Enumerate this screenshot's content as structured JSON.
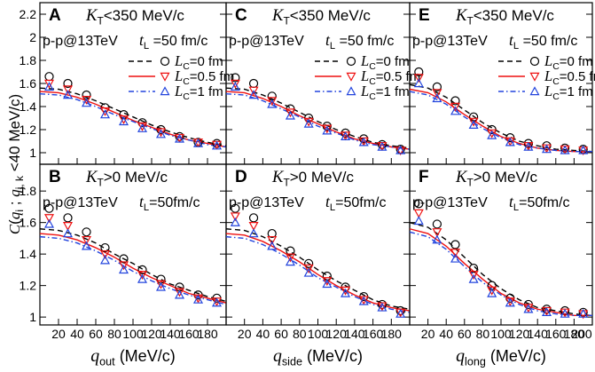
{
  "ylabel": [
    {
      "text": "C",
      "style": "italic"
    },
    {
      "text": "(",
      "style": "normal"
    },
    {
      "text": "q",
      "style": "italic"
    },
    {
      "text": "i",
      "style": "sub"
    },
    {
      "text": " ; ",
      "style": "normal"
    },
    {
      "text": "q",
      "style": "italic"
    },
    {
      "text": "j, k",
      "style": "sub"
    },
    {
      "text": " <40 MeV/c)",
      "style": "normal"
    }
  ],
  "chart_data": [
    {
      "type": "line",
      "label": "A",
      "kt": {
        "symbol": "K",
        "sub": "T",
        "rest": "<350 MeV/c"
      },
      "system": "p-p@13TeV",
      "tl": {
        "symbol": "t",
        "sub": "L",
        "rest": " =50 fm/c"
      },
      "legend_var": {
        "symbol": "L",
        "sub": "C"
      },
      "xlim": [
        0,
        200
      ],
      "ylim": [
        0.9,
        2.3
      ],
      "xticks": [
        20,
        40,
        60,
        80,
        100,
        120,
        140,
        160,
        180
      ],
      "yticks": [
        1,
        1.2,
        1.4,
        1.6,
        1.8,
        2,
        2.2
      ],
      "show_ytick_labels": true,
      "show_xtick_labels": false,
      "curve_x": [
        0,
        20,
        40,
        60,
        80,
        100,
        120,
        140,
        160,
        180,
        200
      ],
      "series": [
        {
          "name": "=0 fm",
          "color": "#000000",
          "dash": "6,4",
          "values": [
            1.56,
            1.55,
            1.51,
            1.45,
            1.38,
            1.31,
            1.24,
            1.18,
            1.13,
            1.09,
            1.06
          ]
        },
        {
          "name": "=0.5 fm",
          "color": "#ee1111",
          "dash": "none",
          "values": [
            1.53,
            1.52,
            1.48,
            1.42,
            1.35,
            1.28,
            1.22,
            1.16,
            1.11,
            1.08,
            1.05
          ]
        },
        {
          "name": "=1 fm",
          "color": "#2244dd",
          "dash": "6,3,1.5,3",
          "values": [
            1.51,
            1.5,
            1.46,
            1.4,
            1.33,
            1.27,
            1.21,
            1.15,
            1.11,
            1.07,
            1.05
          ]
        }
      ],
      "marker_x": [
        10,
        30,
        50,
        70,
        90,
        110,
        130,
        150,
        170,
        190
      ],
      "markers": [
        {
          "marker": "circle",
          "color": "#000000",
          "values": [
            1.66,
            1.6,
            1.5,
            1.39,
            1.33,
            1.26,
            1.2,
            1.14,
            1.09,
            1.08
          ]
        },
        {
          "marker": "triangle-down",
          "color": "#ee1111",
          "values": [
            1.6,
            1.55,
            1.46,
            1.36,
            1.29,
            1.23,
            1.18,
            1.13,
            1.09,
            1.07
          ]
        },
        {
          "marker": "triangle-up",
          "color": "#2244dd",
          "values": [
            1.57,
            1.5,
            1.43,
            1.33,
            1.27,
            1.21,
            1.16,
            1.12,
            1.08,
            1.06
          ]
        }
      ]
    },
    {
      "type": "line",
      "label": "C",
      "kt": {
        "symbol": "K",
        "sub": "T",
        "rest": "<350 MeV/c"
      },
      "system": "p-p@13TeV",
      "tl": {
        "symbol": "t",
        "sub": "L",
        "rest": " =50 fm/c"
      },
      "legend_var": {
        "symbol": "L",
        "sub": "C"
      },
      "xlim": [
        0,
        200
      ],
      "ylim": [
        0.9,
        2.3
      ],
      "xticks": [
        20,
        40,
        60,
        80,
        100,
        120,
        140,
        160,
        180
      ],
      "yticks": [
        1,
        1.2,
        1.4,
        1.6,
        1.8,
        2,
        2.2
      ],
      "show_ytick_labels": false,
      "show_xtick_labels": false,
      "curve_x": [
        0,
        20,
        40,
        60,
        80,
        100,
        120,
        140,
        160,
        180,
        200
      ],
      "series": [
        {
          "name": "=0 fm",
          "color": "#000000",
          "dash": "6,4",
          "values": [
            1.56,
            1.55,
            1.5,
            1.43,
            1.35,
            1.27,
            1.2,
            1.14,
            1.09,
            1.06,
            1.04
          ]
        },
        {
          "name": "=0.5 fm",
          "color": "#ee1111",
          "dash": "none",
          "values": [
            1.53,
            1.52,
            1.47,
            1.4,
            1.32,
            1.25,
            1.18,
            1.12,
            1.08,
            1.05,
            1.03
          ]
        },
        {
          "name": "=1 fm",
          "color": "#2244dd",
          "dash": "6,3,1.5,3",
          "values": [
            1.51,
            1.5,
            1.45,
            1.38,
            1.31,
            1.23,
            1.17,
            1.11,
            1.07,
            1.05,
            1.03
          ]
        }
      ],
      "marker_x": [
        10,
        30,
        50,
        70,
        90,
        110,
        130,
        150,
        170,
        190
      ],
      "markers": [
        {
          "marker": "circle",
          "color": "#000000",
          "values": [
            1.65,
            1.6,
            1.49,
            1.38,
            1.3,
            1.23,
            1.17,
            1.12,
            1.07,
            1.03
          ]
        },
        {
          "marker": "triangle-down",
          "color": "#ee1111",
          "values": [
            1.6,
            1.54,
            1.45,
            1.35,
            1.27,
            1.21,
            1.15,
            1.1,
            1.06,
            1.02
          ]
        },
        {
          "marker": "triangle-up",
          "color": "#2244dd",
          "values": [
            1.57,
            1.5,
            1.42,
            1.32,
            1.25,
            1.19,
            1.14,
            1.09,
            1.05,
            1.02
          ]
        }
      ]
    },
    {
      "type": "line",
      "label": "E",
      "kt": {
        "symbol": "K",
        "sub": "T",
        "rest": "<350 MeV/c"
      },
      "system": "p-p@13TeV",
      "tl": {
        "symbol": "t",
        "sub": "L",
        "rest": " =50 fm/c"
      },
      "legend_var": {
        "symbol": "L",
        "sub": "C"
      },
      "xlim": [
        0,
        200
      ],
      "ylim": [
        0.9,
        2.3
      ],
      "xticks": [
        20,
        40,
        60,
        80,
        100,
        120,
        140,
        160,
        180,
        200
      ],
      "yticks": [
        1,
        1.2,
        1.4,
        1.6,
        1.8,
        2,
        2.2
      ],
      "show_ytick_labels": false,
      "show_xtick_labels": false,
      "curve_x": [
        0,
        20,
        40,
        60,
        80,
        100,
        120,
        140,
        160,
        180,
        200
      ],
      "series": [
        {
          "name": "=0 fm",
          "color": "#000000",
          "dash": "6,4",
          "values": [
            1.59,
            1.56,
            1.48,
            1.37,
            1.26,
            1.17,
            1.1,
            1.06,
            1.03,
            1.02,
            1.01
          ]
        },
        {
          "name": "=0.5 fm",
          "color": "#ee1111",
          "dash": "none",
          "values": [
            1.55,
            1.52,
            1.44,
            1.33,
            1.23,
            1.14,
            1.08,
            1.04,
            1.02,
            1.01,
            1.01
          ]
        },
        {
          "name": "=1 fm",
          "color": "#2244dd",
          "dash": "6,3,1.5,3",
          "values": [
            1.53,
            1.5,
            1.42,
            1.31,
            1.21,
            1.13,
            1.07,
            1.04,
            1.02,
            1.01,
            1.01
          ]
        }
      ],
      "marker_x": [
        10,
        30,
        50,
        70,
        90,
        110,
        130,
        150,
        170,
        190
      ],
      "markers": [
        {
          "marker": "circle",
          "color": "#000000",
          "values": [
            1.7,
            1.57,
            1.45,
            1.31,
            1.2,
            1.13,
            1.08,
            1.06,
            1.04,
            1.03
          ]
        },
        {
          "marker": "triangle-down",
          "color": "#ee1111",
          "values": [
            1.65,
            1.52,
            1.4,
            1.27,
            1.17,
            1.1,
            1.06,
            1.04,
            1.03,
            1.02
          ]
        },
        {
          "marker": "triangle-up",
          "color": "#2244dd",
          "values": [
            1.6,
            1.47,
            1.36,
            1.24,
            1.15,
            1.09,
            1.05,
            1.03,
            1.02,
            1.02
          ]
        }
      ]
    },
    {
      "type": "line",
      "label": "B",
      "kt": {
        "symbol": "K",
        "sub": "T",
        "rest": ">0 MeV/c"
      },
      "system": "p-p@13TeV",
      "tl": {
        "symbol": "t",
        "sub": "L",
        "rest": "=50fm/c"
      },
      "xlabel": {
        "symbol": "q",
        "sub": "out",
        "rest": " (MeV/c)"
      },
      "xlim": [
        0,
        200
      ],
      "ylim": [
        0.95,
        1.97
      ],
      "xticks": [
        20,
        40,
        60,
        80,
        100,
        120,
        140,
        160,
        180
      ],
      "yticks": [
        1,
        1.2,
        1.4,
        1.6,
        1.8
      ],
      "show_ytick_labels": true,
      "show_xtick_labels": true,
      "curve_x": [
        0,
        20,
        40,
        60,
        80,
        100,
        120,
        140,
        160,
        180,
        200
      ],
      "series": [
        {
          "color": "#000000",
          "dash": "6,4",
          "values": [
            1.56,
            1.55,
            1.52,
            1.47,
            1.4,
            1.34,
            1.27,
            1.21,
            1.17,
            1.13,
            1.1
          ]
        },
        {
          "color": "#ee1111",
          "dash": "none",
          "values": [
            1.53,
            1.52,
            1.49,
            1.44,
            1.38,
            1.31,
            1.25,
            1.2,
            1.15,
            1.12,
            1.09
          ]
        },
        {
          "color": "#2244dd",
          "dash": "6,3,1.5,3",
          "values": [
            1.51,
            1.5,
            1.47,
            1.42,
            1.36,
            1.29,
            1.23,
            1.18,
            1.14,
            1.11,
            1.08
          ]
        }
      ],
      "marker_x": [
        10,
        30,
        50,
        70,
        90,
        110,
        130,
        150,
        170,
        190
      ],
      "markers": [
        {
          "marker": "circle",
          "color": "#000000",
          "values": [
            1.69,
            1.63,
            1.54,
            1.44,
            1.37,
            1.3,
            1.24,
            1.19,
            1.14,
            1.12
          ]
        },
        {
          "marker": "triangle-down",
          "color": "#ee1111",
          "values": [
            1.63,
            1.58,
            1.49,
            1.4,
            1.33,
            1.27,
            1.21,
            1.16,
            1.12,
            1.1
          ]
        },
        {
          "marker": "triangle-up",
          "color": "#2244dd",
          "values": [
            1.59,
            1.53,
            1.45,
            1.36,
            1.3,
            1.24,
            1.19,
            1.14,
            1.11,
            1.09
          ]
        }
      ]
    },
    {
      "type": "line",
      "label": "D",
      "kt": {
        "symbol": "K",
        "sub": "T",
        "rest": ">0 MeV/c"
      },
      "system": "p-p@13TeV",
      "tl": {
        "symbol": "t",
        "sub": "L",
        "rest": "=50fm/c"
      },
      "xlabel": {
        "symbol": "q",
        "sub": "side",
        "rest": " (MeV/c)"
      },
      "xlim": [
        0,
        200
      ],
      "ylim": [
        0.95,
        1.97
      ],
      "xticks": [
        20,
        40,
        60,
        80,
        100,
        120,
        140,
        160,
        180
      ],
      "yticks": [
        1,
        1.2,
        1.4,
        1.6,
        1.8
      ],
      "show_ytick_labels": false,
      "show_xtick_labels": true,
      "curve_x": [
        0,
        20,
        40,
        60,
        80,
        100,
        120,
        140,
        160,
        180,
        200
      ],
      "series": [
        {
          "color": "#000000",
          "dash": "6,4",
          "values": [
            1.56,
            1.55,
            1.51,
            1.45,
            1.38,
            1.3,
            1.23,
            1.17,
            1.11,
            1.07,
            1.05
          ]
        },
        {
          "color": "#ee1111",
          "dash": "none",
          "values": [
            1.53,
            1.52,
            1.48,
            1.42,
            1.35,
            1.27,
            1.2,
            1.14,
            1.09,
            1.06,
            1.04
          ]
        },
        {
          "color": "#2244dd",
          "dash": "6,3,1.5,3",
          "values": [
            1.51,
            1.5,
            1.46,
            1.4,
            1.33,
            1.25,
            1.19,
            1.13,
            1.08,
            1.05,
            1.03
          ]
        }
      ],
      "marker_x": [
        10,
        30,
        50,
        70,
        90,
        110,
        130,
        150,
        170,
        190
      ],
      "markers": [
        {
          "marker": "circle",
          "color": "#000000",
          "values": [
            1.69,
            1.63,
            1.53,
            1.42,
            1.34,
            1.26,
            1.19,
            1.13,
            1.08,
            1.04
          ]
        },
        {
          "marker": "triangle-down",
          "color": "#ee1111",
          "values": [
            1.64,
            1.58,
            1.49,
            1.38,
            1.31,
            1.23,
            1.17,
            1.11,
            1.07,
            1.03
          ]
        },
        {
          "marker": "triangle-up",
          "color": "#2244dd",
          "values": [
            1.6,
            1.53,
            1.45,
            1.35,
            1.28,
            1.21,
            1.15,
            1.1,
            1.06,
            1.02
          ]
        }
      ]
    },
    {
      "type": "line",
      "label": "F",
      "kt": {
        "symbol": "K",
        "sub": "T",
        "rest": ">0 MeV/c"
      },
      "system": "p-p@13TeV",
      "tl": {
        "symbol": "t",
        "sub": "L",
        "rest": "=50fm/c"
      },
      "xlabel": {
        "symbol": "q",
        "sub": "long",
        "rest": " (MeV/c)"
      },
      "xlim": [
        0,
        200
      ],
      "ylim": [
        0.95,
        1.97
      ],
      "xticks": [
        20,
        40,
        60,
        80,
        100,
        120,
        140,
        160,
        180,
        200
      ],
      "yticks": [
        1,
        1.2,
        1.4,
        1.6,
        1.8
      ],
      "show_ytick_labels": false,
      "show_xtick_labels": true,
      "curve_x": [
        0,
        20,
        40,
        60,
        80,
        100,
        120,
        140,
        160,
        180,
        200
      ],
      "series": [
        {
          "color": "#000000",
          "dash": "6,4",
          "values": [
            1.6,
            1.57,
            1.49,
            1.38,
            1.27,
            1.18,
            1.11,
            1.06,
            1.04,
            1.02,
            1.01
          ]
        },
        {
          "color": "#ee1111",
          "dash": "none",
          "values": [
            1.56,
            1.53,
            1.45,
            1.34,
            1.24,
            1.15,
            1.09,
            1.05,
            1.03,
            1.01,
            1.01
          ]
        },
        {
          "color": "#2244dd",
          "dash": "6,3,1.5,3",
          "values": [
            1.54,
            1.51,
            1.43,
            1.32,
            1.22,
            1.14,
            1.08,
            1.04,
            1.02,
            1.01,
            1.01
          ]
        }
      ],
      "marker_x": [
        10,
        30,
        50,
        70,
        90,
        110,
        130,
        150,
        170,
        190
      ],
      "markers": [
        {
          "marker": "circle",
          "color": "#000000",
          "values": [
            1.72,
            1.59,
            1.46,
            1.31,
            1.2,
            1.12,
            1.08,
            1.05,
            1.04,
            1.03
          ]
        },
        {
          "marker": "triangle-down",
          "color": "#ee1111",
          "values": [
            1.66,
            1.54,
            1.41,
            1.27,
            1.17,
            1.1,
            1.06,
            1.04,
            1.03,
            1.02
          ]
        },
        {
          "marker": "triangle-up",
          "color": "#2244dd",
          "values": [
            1.61,
            1.49,
            1.37,
            1.24,
            1.15,
            1.09,
            1.05,
            1.03,
            1.02,
            1.02
          ]
        }
      ]
    }
  ]
}
